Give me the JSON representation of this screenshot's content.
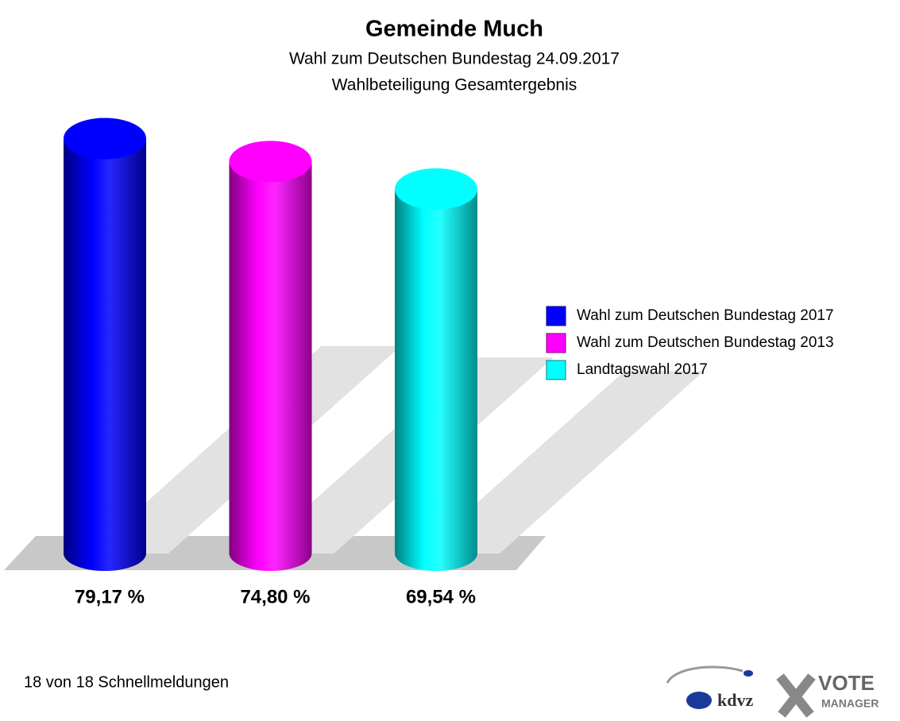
{
  "chart_data": {
    "type": "bar",
    "title": "Gemeinde Much",
    "subtitle": [
      "Wahl zum Deutschen Bundestag 24.09.2017",
      "Wahlbeteiligung Gesamtergebnis"
    ],
    "categories": [
      "Wahl zum Deutschen Bundestag 2017",
      "Wahl zum Deutschen Bundestag 2013",
      "Landtagswahl 2017"
    ],
    "values": [
      79.17,
      74.8,
      69.54
    ],
    "value_labels": [
      "79,17 %",
      "74,80 %",
      "69,54 %"
    ],
    "colors": [
      "#0000ff",
      "#ff00ff",
      "#00ffff"
    ],
    "footnote": "18 von 18 Schnellmeldungen",
    "logo": [
      "kdvz",
      "VOTE",
      "MANAGER"
    ]
  }
}
